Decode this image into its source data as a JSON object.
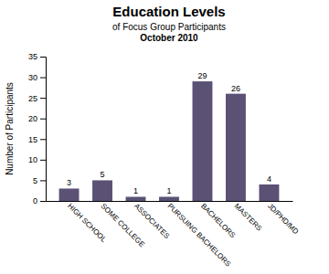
{
  "chart_data": {
    "type": "bar",
    "title": "Education Levels",
    "subtitle": [
      "of Focus Group Participants",
      "October 2010"
    ],
    "categories": [
      "HIGH SCHOOL",
      "SOME COLLEGE",
      "ASSOCIATES",
      "PURSUING BACHELORS",
      "BACHELORS",
      "MASTERS",
      "JD/PHD/MD"
    ],
    "values": [
      3,
      5,
      1,
      1,
      29,
      26,
      4
    ],
    "color": "#5a5175",
    "ylabel": "Number of Participants",
    "ylim": [
      0,
      35
    ],
    "yticks": [
      0,
      5,
      10,
      15,
      20,
      25,
      30,
      35
    ],
    "grid": false,
    "data_labels": true
  }
}
